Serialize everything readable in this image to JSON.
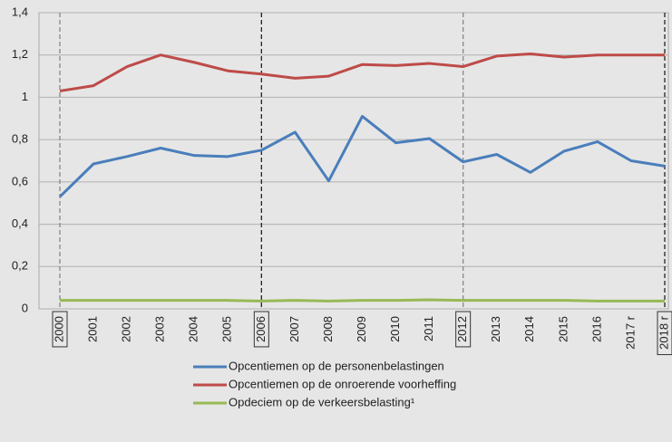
{
  "chart_data": {
    "type": "line",
    "categories": [
      "2000",
      "2001",
      "2002",
      "2003",
      "2004",
      "2005",
      "2006",
      "2007",
      "2008",
      "2009",
      "2010",
      "2011",
      "2012",
      "2013",
      "2014",
      "2015",
      "2016",
      "2017 r",
      "2018 r"
    ],
    "series": [
      {
        "name": "Opcentiemen op de personenbelastingen",
        "color": "#4a7ebb",
        "values": [
          0.53,
          0.685,
          0.72,
          0.76,
          0.725,
          0.72,
          0.75,
          0.835,
          0.605,
          0.91,
          0.785,
          0.805,
          0.695,
          0.73,
          0.645,
          0.745,
          0.79,
          0.7,
          0.675
        ]
      },
      {
        "name": "Opcentiemen op de onroerende voorheffing",
        "color": "#be4b48",
        "values": [
          1.03,
          1.055,
          1.145,
          1.2,
          1.165,
          1.125,
          1.11,
          1.09,
          1.1,
          1.155,
          1.15,
          1.16,
          1.145,
          1.195,
          1.205,
          1.19,
          1.2,
          1.2,
          1.2
        ]
      },
      {
        "name": "Opdeciem op de verkeersbelasting¹",
        "color": "#98b954",
        "values": [
          0.04,
          0.04,
          0.04,
          0.04,
          0.04,
          0.04,
          0.037,
          0.04,
          0.037,
          0.04,
          0.04,
          0.043,
          0.04,
          0.04,
          0.04,
          0.04,
          0.037,
          0.037,
          0.037
        ]
      }
    ],
    "ylim": [
      0,
      1.4
    ],
    "yticks": [
      0,
      {
        "value": 0.2,
        "label": "0,2"
      },
      {
        "value": 0.4,
        "label": "0,4"
      },
      {
        "value": 0.6,
        "label": "0,6"
      },
      {
        "value": 0.8,
        "label": "0,8"
      },
      1,
      {
        "value": 1.2,
        "label": "1,2"
      },
      {
        "value": 1.4,
        "label": "1,4"
      }
    ],
    "grid": true,
    "boxed_categories": [
      0,
      6,
      12,
      18
    ],
    "dashed_lines": [
      {
        "index": 0,
        "color": "#888888"
      },
      {
        "index": 6,
        "color": "#222222"
      },
      {
        "index": 12,
        "color": "#888888"
      },
      {
        "index": 18,
        "color": "#222222"
      }
    ],
    "legend": "bottom"
  }
}
